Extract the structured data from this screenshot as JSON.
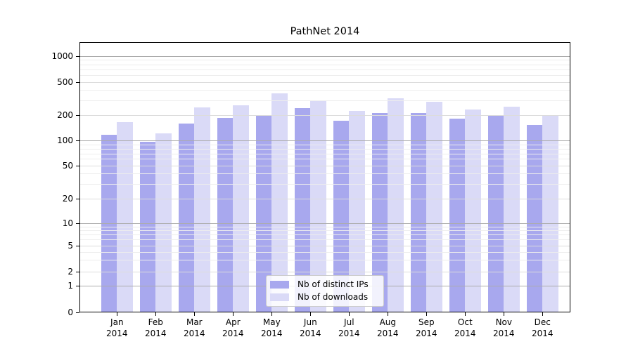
{
  "title": "PathNet 2014",
  "colors": {
    "ips_bar": "#a8a8ee",
    "downloads_bar": "#dadaf7",
    "grid_power10": "#ababab",
    "grid_labeled": "#dcdcdc",
    "grid_minor": "#ededed",
    "axis": "#000000",
    "legend_border": "#cccccc"
  },
  "legend": {
    "position": "lower center",
    "items": [
      {
        "label": "Nb of distinct IPs",
        "series": "ips"
      },
      {
        "label": "Nb of downloads",
        "series": "downloads"
      }
    ]
  },
  "y_axis": {
    "tick_labels": [
      "0",
      "1",
      "2",
      "5",
      "10",
      "20",
      "50",
      "100",
      "200",
      "500",
      "1000"
    ]
  },
  "x_axis": {
    "year": "2014",
    "months": [
      "Jan",
      "Feb",
      "Mar",
      "Apr",
      "May",
      "Jun",
      "Jul",
      "Aug",
      "Sep",
      "Oct",
      "Nov",
      "Dec"
    ]
  },
  "chart_data": {
    "type": "bar",
    "title": "PathNet 2014",
    "categories": [
      "Jan 2014",
      "Feb 2014",
      "Mar 2014",
      "Apr 2014",
      "May 2014",
      "Jun 2014",
      "Jul 2014",
      "Aug 2014",
      "Sep 2014",
      "Oct 2014",
      "Nov 2014",
      "Dec 2014"
    ],
    "series": [
      {
        "name": "Nb of distinct IPs",
        "values": [
          118,
          96,
          159,
          185,
          197,
          244,
          171,
          214,
          214,
          184,
          202,
          155
        ]
      },
      {
        "name": "Nb of downloads",
        "values": [
          165,
          121,
          249,
          266,
          367,
          296,
          224,
          322,
          292,
          237,
          254,
          201
        ]
      }
    ],
    "xlabel": "",
    "ylabel": "",
    "yscale": "symlog",
    "y_ticks": [
      0,
      1,
      2,
      5,
      10,
      20,
      50,
      100,
      200,
      500,
      1000
    ],
    "ylim": [
      0,
      1400
    ],
    "grid": true,
    "legend_position": "lower center"
  }
}
